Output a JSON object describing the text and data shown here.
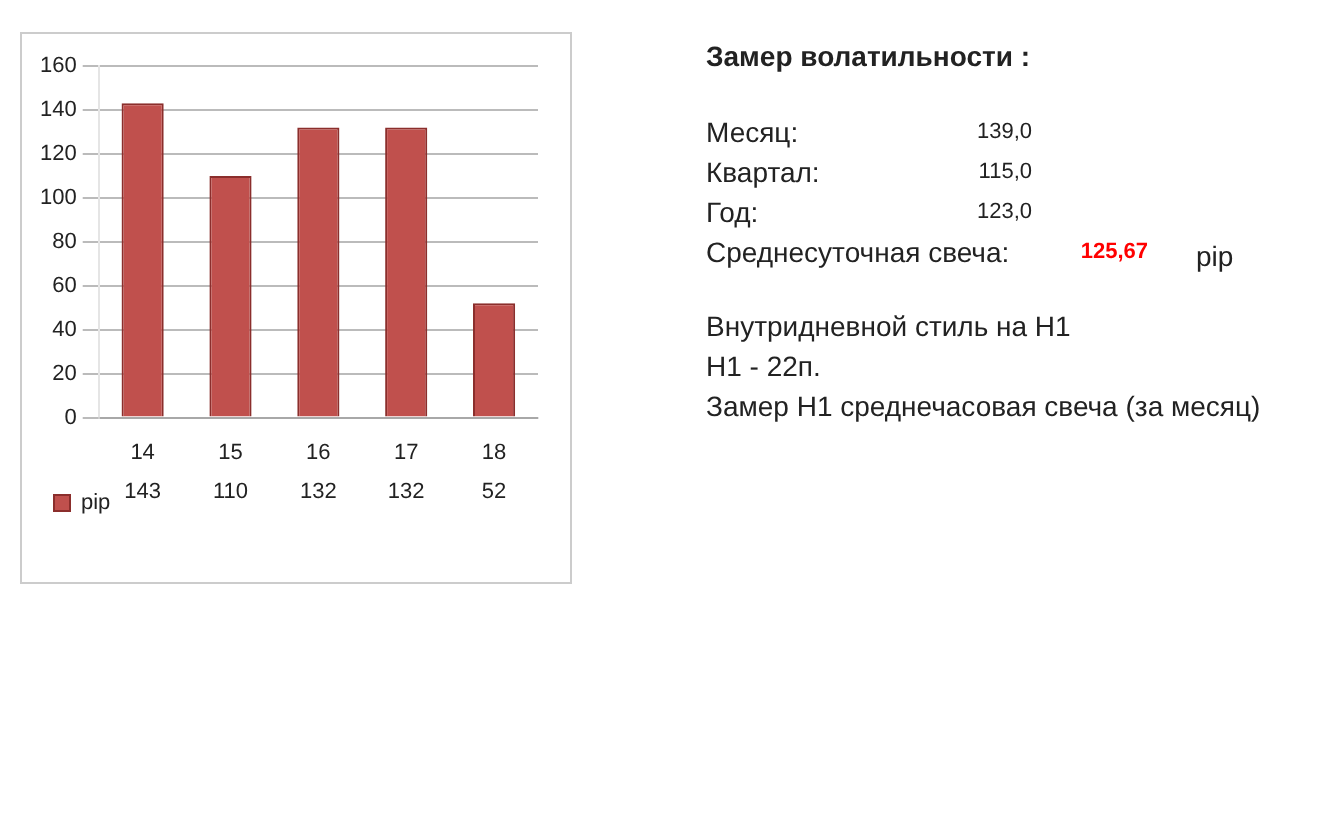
{
  "chart_data": {
    "type": "bar",
    "categories": [
      "14",
      "15",
      "16",
      "17",
      "18"
    ],
    "series": [
      {
        "name": "pip",
        "color": "#c0504d",
        "values": [
          143,
          110,
          132,
          132,
          52
        ]
      }
    ],
    "ylim": [
      0,
      160
    ],
    "yticks": [
      0,
      20,
      40,
      60,
      80,
      100,
      120,
      140,
      160
    ],
    "grid": "y",
    "legend": "bottom",
    "data_labels": true,
    "annotations": [
      "Замер  волатильности  :",
      "Месяц:",
      "139,0",
      "Квартал:",
      "115,0",
      "Год:",
      "123,0",
      "Среднесуточная свеча:",
      "125,67",
      "pip",
      "Внутридневной стиль на H1",
      "H1 - 22п.",
      "Замер H1 среднечасовая свеча (за месяц)"
    ]
  }
}
